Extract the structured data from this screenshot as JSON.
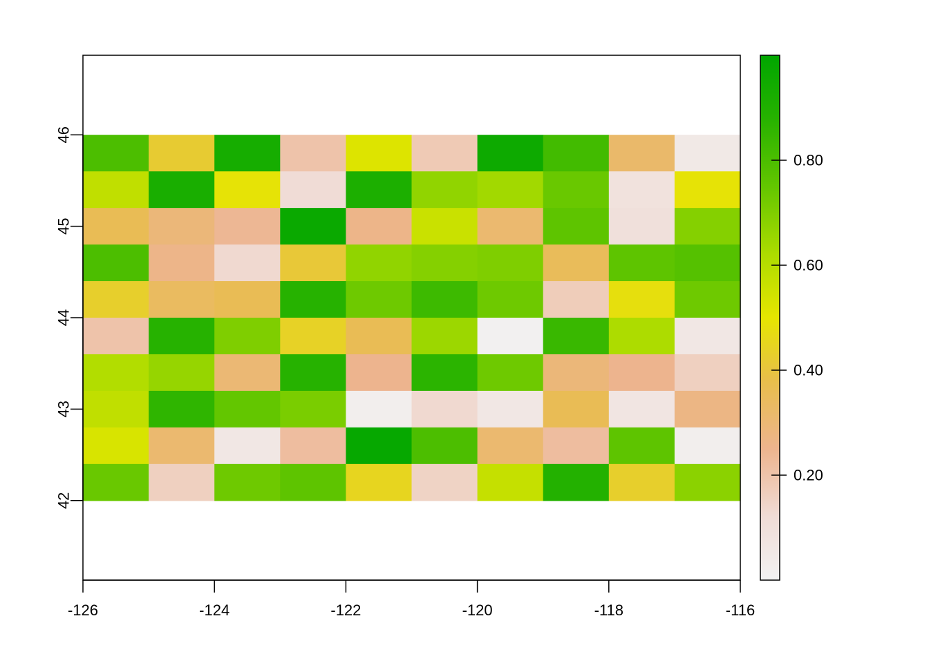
{
  "chart_data": {
    "type": "heatmap",
    "title": "",
    "xlabel": "",
    "ylabel": "",
    "xlim": [
      -126,
      -116
    ],
    "ylim": [
      41.13,
      46.87
    ],
    "x_ticks": [
      "-126",
      "-124",
      "-122",
      "-120",
      "-118",
      "-116"
    ],
    "x_tick_values": [
      -126,
      -124,
      -122,
      -120,
      -118,
      -116
    ],
    "y_ticks": [
      "42",
      "43",
      "44",
      "45",
      "46"
    ],
    "y_tick_values": [
      42,
      43,
      44,
      45,
      46
    ],
    "grid_extent": {
      "xmin": -126,
      "xmax": -116,
      "ymin": 42,
      "ymax": 46
    },
    "ncols": 10,
    "nrows": 10,
    "values_rows_top_to_bottom": [
      [
        0.8,
        0.42,
        0.93,
        0.2,
        0.52,
        0.18,
        0.96,
        0.82,
        0.32,
        0.05
      ],
      [
        0.58,
        0.92,
        0.49,
        0.12,
        0.91,
        0.67,
        0.64,
        0.74,
        0.09,
        0.49
      ],
      [
        0.36,
        0.29,
        0.24,
        0.97,
        0.26,
        0.56,
        0.31,
        0.76,
        0.1,
        0.69
      ],
      [
        0.8,
        0.26,
        0.13,
        0.41,
        0.67,
        0.69,
        0.7,
        0.35,
        0.76,
        0.78
      ],
      [
        0.43,
        0.34,
        0.36,
        0.88,
        0.73,
        0.83,
        0.73,
        0.17,
        0.48,
        0.73
      ],
      [
        0.2,
        0.88,
        0.7,
        0.44,
        0.36,
        0.65,
        0.01,
        0.84,
        0.62,
        0.06
      ],
      [
        0.61,
        0.66,
        0.3,
        0.88,
        0.25,
        0.87,
        0.73,
        0.29,
        0.25,
        0.16
      ],
      [
        0.58,
        0.86,
        0.75,
        0.71,
        0.02,
        0.13,
        0.06,
        0.36,
        0.07,
        0.27
      ],
      [
        0.53,
        0.31,
        0.06,
        0.22,
        0.98,
        0.8,
        0.31,
        0.22,
        0.76,
        0.02
      ],
      [
        0.74,
        0.16,
        0.73,
        0.76,
        0.45,
        0.15,
        0.57,
        0.89,
        0.43,
        0.68
      ]
    ],
    "legend": {
      "position": "right",
      "range": [
        0.0,
        1.0
      ],
      "ticks": [
        "0.20",
        "0.40",
        "0.60",
        "0.80"
      ],
      "tick_values": [
        0.2,
        0.4,
        0.6,
        0.8
      ],
      "colormap": [
        {
          "value": 0.0,
          "color": "#F2F2F2"
        },
        {
          "value": 0.12,
          "color": "#F0DCD6"
        },
        {
          "value": 0.25,
          "color": "#EDB48E"
        },
        {
          "value": 0.38,
          "color": "#E8BE4B"
        },
        {
          "value": 0.5,
          "color": "#E6E600"
        },
        {
          "value": 0.62,
          "color": "#ADDC00"
        },
        {
          "value": 0.75,
          "color": "#63C600"
        },
        {
          "value": 0.88,
          "color": "#26B200"
        },
        {
          "value": 1.0,
          "color": "#00A600"
        }
      ]
    },
    "colors": {
      "axis": "#000000",
      "background": "#ffffff"
    }
  }
}
